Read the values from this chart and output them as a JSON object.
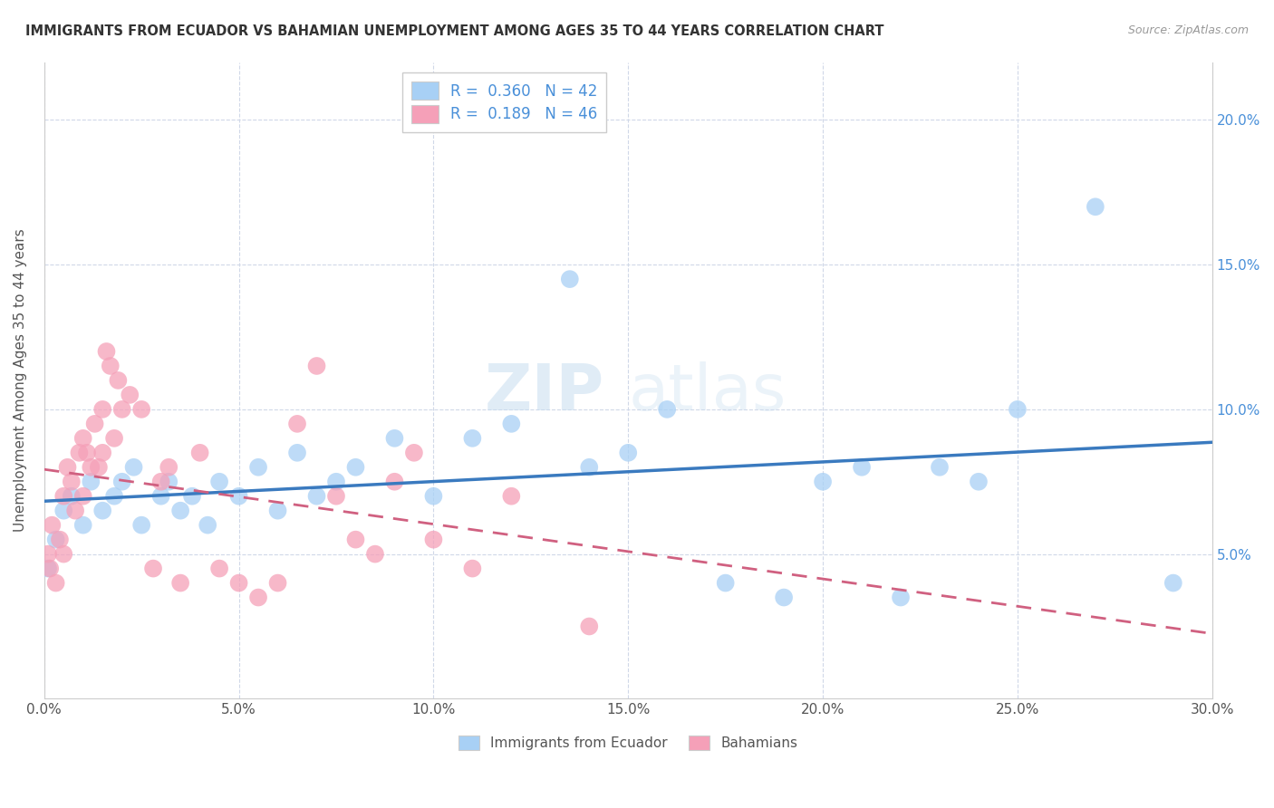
{
  "title": "IMMIGRANTS FROM ECUADOR VS BAHAMIAN UNEMPLOYMENT AMONG AGES 35 TO 44 YEARS CORRELATION CHART",
  "source": "Source: ZipAtlas.com",
  "ylabel": "Unemployment Among Ages 35 to 44 years",
  "x_tick_labels": [
    "0.0%",
    "5.0%",
    "10.0%",
    "15.0%",
    "20.0%",
    "25.0%",
    "30.0%"
  ],
  "x_tick_values": [
    0.0,
    5.0,
    10.0,
    15.0,
    20.0,
    25.0,
    30.0
  ],
  "y_tick_labels": [
    "5.0%",
    "10.0%",
    "15.0%",
    "20.0%"
  ],
  "y_tick_values": [
    5.0,
    10.0,
    15.0,
    20.0
  ],
  "xlim": [
    0.0,
    30.0
  ],
  "ylim": [
    0.0,
    22.0
  ],
  "r_ecuador": 0.36,
  "n_ecuador": 42,
  "r_bahamian": 0.189,
  "n_bahamian": 46,
  "color_ecuador": "#a8d0f5",
  "color_bahamian": "#f5a0b8",
  "line_color_ecuador": "#3a7abf",
  "line_color_bahamian": "#d06080",
  "watermark": "ZIPatlas",
  "legend_labels": [
    "Immigrants from Ecuador",
    "Bahamians"
  ],
  "ecuador_scatter_x": [
    0.1,
    0.3,
    0.5,
    0.7,
    1.0,
    1.2,
    1.5,
    1.8,
    2.0,
    2.3,
    2.5,
    3.0,
    3.2,
    3.5,
    3.8,
    4.2,
    4.5,
    5.0,
    5.5,
    6.0,
    6.5,
    7.0,
    7.5,
    8.0,
    9.0,
    10.0,
    11.0,
    12.0,
    13.5,
    14.0,
    15.0,
    16.0,
    17.5,
    19.0,
    20.0,
    21.0,
    22.0,
    23.0,
    24.0,
    25.0,
    27.0,
    29.0
  ],
  "ecuador_scatter_y": [
    4.5,
    5.5,
    6.5,
    7.0,
    6.0,
    7.5,
    6.5,
    7.0,
    7.5,
    8.0,
    6.0,
    7.0,
    7.5,
    6.5,
    7.0,
    6.0,
    7.5,
    7.0,
    8.0,
    6.5,
    8.5,
    7.0,
    7.5,
    8.0,
    9.0,
    7.0,
    9.0,
    9.5,
    14.5,
    8.0,
    8.5,
    10.0,
    4.0,
    3.5,
    7.5,
    8.0,
    3.5,
    8.0,
    7.5,
    10.0,
    17.0,
    4.0
  ],
  "bahamian_scatter_x": [
    0.1,
    0.15,
    0.2,
    0.3,
    0.4,
    0.5,
    0.5,
    0.6,
    0.7,
    0.8,
    0.9,
    1.0,
    1.0,
    1.1,
    1.2,
    1.3,
    1.4,
    1.5,
    1.5,
    1.6,
    1.7,
    1.8,
    1.9,
    2.0,
    2.2,
    2.5,
    2.8,
    3.0,
    3.2,
    3.5,
    4.0,
    4.5,
    5.0,
    5.5,
    6.0,
    6.5,
    7.0,
    7.5,
    8.0,
    8.5,
    9.0,
    9.5,
    10.0,
    11.0,
    12.0,
    14.0
  ],
  "bahamian_scatter_y": [
    5.0,
    4.5,
    6.0,
    4.0,
    5.5,
    7.0,
    5.0,
    8.0,
    7.5,
    6.5,
    8.5,
    9.0,
    7.0,
    8.5,
    8.0,
    9.5,
    8.0,
    10.0,
    8.5,
    12.0,
    11.5,
    9.0,
    11.0,
    10.0,
    10.5,
    10.0,
    4.5,
    7.5,
    8.0,
    4.0,
    8.5,
    4.5,
    4.0,
    3.5,
    4.0,
    9.5,
    11.5,
    7.0,
    5.5,
    5.0,
    7.5,
    8.5,
    5.5,
    4.5,
    7.0,
    2.5
  ]
}
